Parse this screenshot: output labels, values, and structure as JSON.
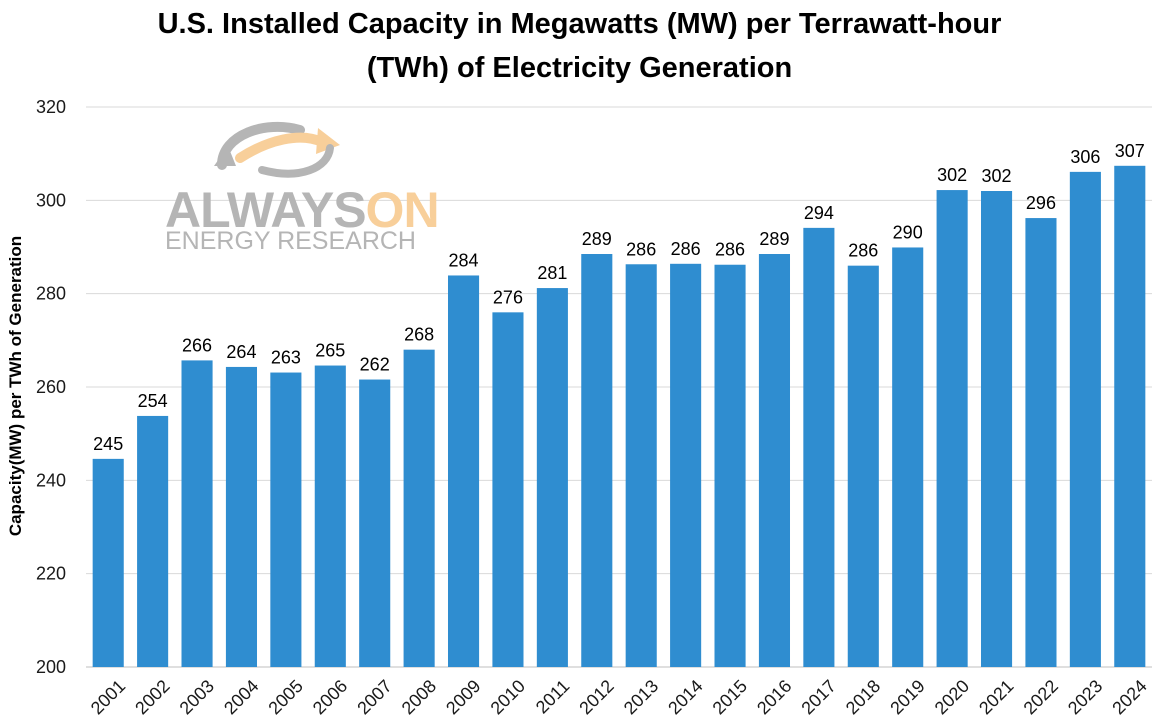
{
  "colors": {
    "bar": "#2f8dd0",
    "grid": "#d9d9d9",
    "logo_gray": "#b5b5b5",
    "logo_orange": "#f8cf9a"
  },
  "logo": {
    "word1": "ALWAYS",
    "word2": "ON",
    "subtitle": "ENERGY RESEARCH",
    "icon": "swoosh-arrows-icon"
  },
  "chart_data": {
    "type": "bar",
    "title_line1": "U.S. Installed Capacity in Megawatts (MW) per Terrawatt-hour",
    "title_line2": "(TWh) of Electricity Generation",
    "xlabel": "",
    "ylabel": "Capacity(MW) per TWh of Generation",
    "ylim": [
      200,
      320
    ],
    "yticks": [
      200,
      220,
      240,
      260,
      280,
      300,
      320
    ],
    "grid": true,
    "categories": [
      "2001",
      "2002",
      "2003",
      "2004",
      "2005",
      "2006",
      "2007",
      "2008",
      "2009",
      "2010",
      "2011",
      "2012",
      "2013",
      "2014",
      "2015",
      "2016",
      "2017",
      "2018",
      "2019",
      "2020",
      "2021",
      "2022",
      "2023",
      "2024"
    ],
    "values": [
      244.6,
      253.8,
      265.7,
      264.3,
      263.1,
      264.6,
      261.6,
      268.0,
      283.9,
      276.0,
      281.2,
      288.5,
      286.3,
      286.4,
      286.2,
      288.5,
      294.1,
      286.0,
      289.9,
      302.2,
      302.0,
      296.2,
      306.1,
      307.4
    ],
    "data_labels": [
      "245",
      "254",
      "266",
      "264",
      "263",
      "265",
      "262",
      "268",
      "284",
      "276",
      "281",
      "289",
      "286",
      "286",
      "286",
      "289",
      "294",
      "286",
      "290",
      "302",
      "302",
      "296",
      "306",
      "307"
    ]
  }
}
